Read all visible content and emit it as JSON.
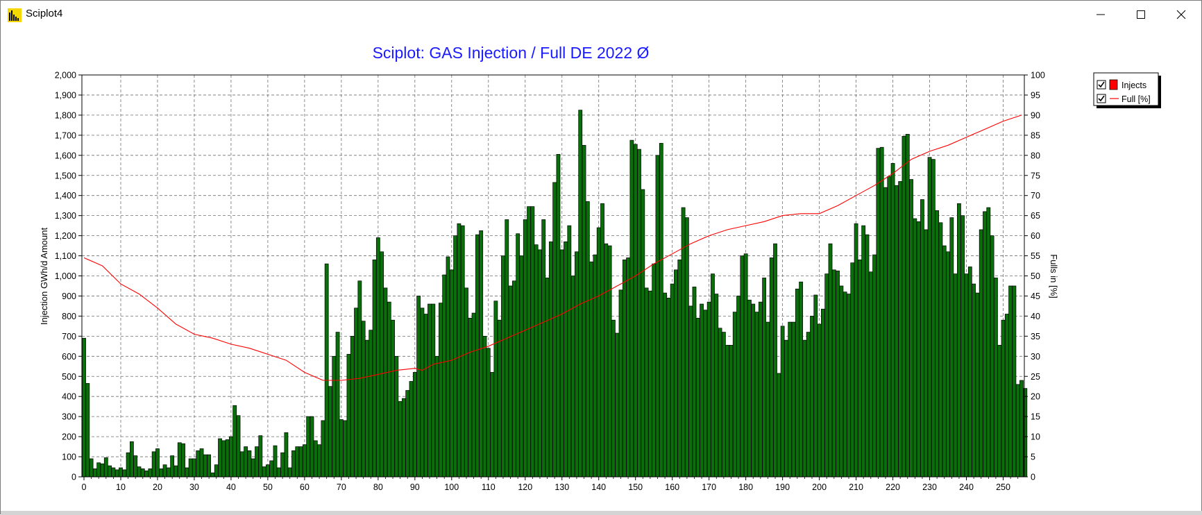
{
  "window": {
    "title": "Sciplot4"
  },
  "chart_data": {
    "type": "bar",
    "title": "Sciplot: GAS Injection / Full DE 2022 Ø",
    "xlabel": "",
    "ylabel": "Injection GWh/d Amount",
    "y2label": "Fulls in [%]",
    "xlim": [
      0,
      255
    ],
    "ylim": [
      0,
      2000
    ],
    "y2lim": [
      0,
      100
    ],
    "grid": true,
    "legend_position": "top-right",
    "x_ticks": [
      "0",
      "10",
      "20",
      "30",
      "40",
      "50",
      "60",
      "70",
      "80",
      "90",
      "100",
      "110",
      "120",
      "130",
      "140",
      "150",
      "160",
      "170",
      "180",
      "190",
      "200",
      "210",
      "220",
      "230",
      "240",
      "250"
    ],
    "y_ticks": [
      "0",
      "100",
      "200",
      "300",
      "400",
      "500",
      "600",
      "700",
      "800",
      "900",
      "1,000",
      "1,100",
      "1,200",
      "1,300",
      "1,400",
      "1,500",
      "1,600",
      "1,700",
      "1,800",
      "1,900",
      "2,000"
    ],
    "y2_ticks": [
      "0",
      "5",
      "10",
      "15",
      "20",
      "25",
      "30",
      "35",
      "40",
      "45",
      "50",
      "55",
      "60",
      "65",
      "70",
      "75",
      "80",
      "85",
      "90",
      "95",
      "100"
    ],
    "series": [
      {
        "name": "Injects",
        "kind": "bar",
        "color": "#0a6e0a",
        "values": [
          690,
          465,
          90,
          40,
          70,
          65,
          95,
          55,
          45,
          35,
          45,
          35,
          120,
          175,
          105,
          50,
          40,
          30,
          40,
          125,
          140,
          40,
          60,
          45,
          105,
          55,
          170,
          165,
          45,
          90,
          90,
          130,
          140,
          110,
          110,
          20,
          60,
          190,
          180,
          185,
          200,
          355,
          305,
          125,
          150,
          130,
          90,
          150,
          205,
          50,
          60,
          80,
          155,
          45,
          120,
          220,
          45,
          130,
          150,
          150,
          160,
          300,
          300,
          180,
          160,
          280,
          1060,
          450,
          600,
          720,
          285,
          280,
          610,
          700,
          840,
          975,
          775,
          680,
          730,
          1080,
          1190,
          1120,
          940,
          870,
          780,
          600,
          375,
          390,
          430,
          475,
          520,
          900,
          840,
          810,
          860,
          860,
          600,
          865,
          1005,
          1095,
          1030,
          1200,
          1260,
          1250,
          940,
          790,
          815,
          1205,
          1225,
          700,
          640,
          520,
          875,
          780,
          1100,
          1280,
          950,
          975,
          1210,
          1100,
          1280,
          1345,
          1345,
          1155,
          1130,
          1280,
          990,
          1170,
          1465,
          1605,
          1130,
          1170,
          1250,
          1000,
          1120,
          1825,
          1650,
          1370,
          1070,
          1105,
          1240,
          1360,
          1160,
          1150,
          780,
          715,
          930,
          1080,
          1090,
          1675,
          1655,
          1630,
          1430,
          940,
          925,
          1060,
          1600,
          1660,
          915,
          890,
          960,
          1030,
          1080,
          1340,
          1290,
          850,
          945,
          790,
          860,
          830,
          870,
          1010,
          910,
          740,
          720,
          655,
          655,
          820,
          900,
          1100,
          1110,
          880,
          860,
          820,
          870,
          990,
          770,
          1090,
          1160,
          515,
          750,
          680,
          770,
          770,
          935,
          970,
          680,
          720,
          800,
          905,
          760,
          835,
          1010,
          1160,
          1030,
          1025,
          950,
          920,
          910,
          1065,
          1260,
          1080,
          1250,
          1205,
          1020,
          1105,
          1635,
          1640,
          1440,
          1495,
          1560,
          1450,
          1470,
          1695,
          1705,
          1480,
          1285,
          1270,
          1380,
          1230,
          1590,
          1580,
          1325,
          1265,
          1150,
          1120,
          1290,
          1010,
          1360,
          1300,
          1010,
          1045,
          960,
          915,
          1230,
          1320,
          1340,
          1200,
          990,
          655,
          780,
          810,
          950,
          950,
          460,
          480,
          440
        ]
      },
      {
        "name": "Full [%]",
        "kind": "line",
        "axis": "right",
        "color": "#ff0000",
        "x": [
          0,
          5,
          10,
          15,
          20,
          25,
          30,
          35,
          40,
          45,
          50,
          55,
          60,
          65,
          70,
          75,
          80,
          85,
          90,
          92,
          95,
          100,
          105,
          110,
          115,
          120,
          125,
          130,
          135,
          140,
          145,
          150,
          155,
          160,
          165,
          170,
          175,
          180,
          185,
          190,
          195,
          200,
          205,
          210,
          215,
          220,
          225,
          230,
          235,
          240,
          245,
          250,
          255
        ],
        "values": [
          54.5,
          52.5,
          48.0,
          45.5,
          42.0,
          38.0,
          35.5,
          34.5,
          33.0,
          32.0,
          30.5,
          29.0,
          26.0,
          24.0,
          24.0,
          24.5,
          25.5,
          26.5,
          27.0,
          26.5,
          28.0,
          29.0,
          31.0,
          32.5,
          34.5,
          36.5,
          38.5,
          40.5,
          43.0,
          45.0,
          47.5,
          50.0,
          53.0,
          55.5,
          58.0,
          60.0,
          61.5,
          62.5,
          63.5,
          65.0,
          65.5,
          65.5,
          67.5,
          70.0,
          72.5,
          75.5,
          79.0,
          81.0,
          82.5,
          84.5,
          86.5,
          88.5,
          90.0
        ]
      }
    ]
  }
}
